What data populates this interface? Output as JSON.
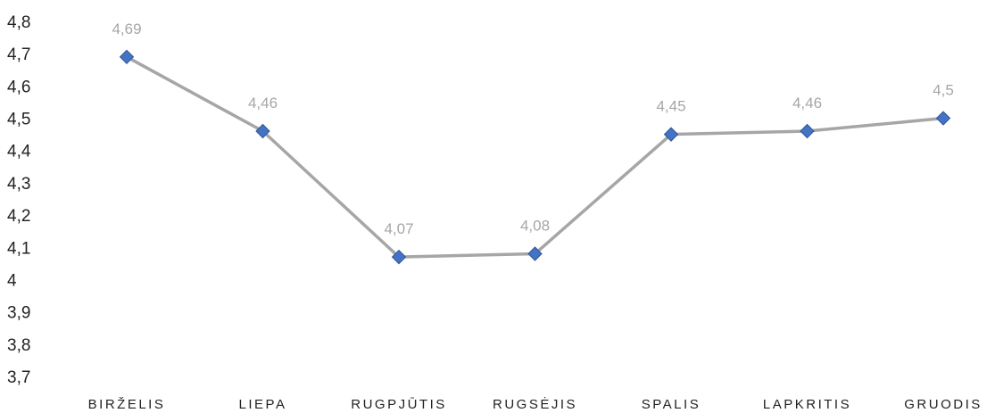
{
  "chart_data": {
    "type": "line",
    "title": "",
    "xlabel": "",
    "ylabel": "",
    "categories": [
      "BIRŽELIS",
      "LIEPA",
      "RUGPJŪTIS",
      "RUGSĖJIS",
      "SPALIS",
      "LAPKRITIS",
      "GRUODIS"
    ],
    "series": [
      {
        "values": [
          4.69,
          4.46,
          4.07,
          4.08,
          4.45,
          4.46,
          4.5
        ],
        "data_labels": [
          "4,69",
          "4,46",
          "4,07",
          "4,08",
          "4,45",
          "4,46",
          "4,5"
        ],
        "line_color": "#a6a6a6",
        "marker": "diamond",
        "marker_color": "#4472c4"
      }
    ],
    "ylim": [
      3.7,
      4.8
    ],
    "yticks": [
      4.8,
      4.7,
      4.6,
      4.5,
      4.4,
      4.3,
      4.2,
      4.1,
      4,
      3.9,
      3.8,
      3.7
    ],
    "ytick_labels": [
      "4,8",
      "4,7",
      "4,6",
      "4,5",
      "4,4",
      "4,3",
      "4,2",
      "4,1",
      "4",
      "3,9",
      "3,8",
      "3,7"
    ],
    "grid": false,
    "legend": "none"
  }
}
